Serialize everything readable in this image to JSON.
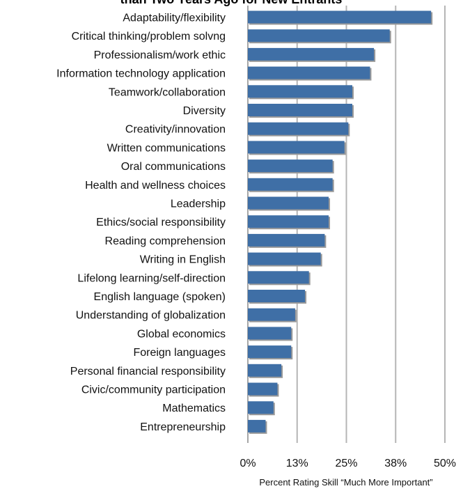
{
  "chart_data": {
    "type": "bar",
    "orientation": "horizontal",
    "title": "than Two Years Ago for New Entrants",
    "xlabel": "Percent Rating Skill “Much More Important”",
    "ylabel": "",
    "xlim": [
      0,
      50
    ],
    "x_ticks": [
      0,
      12.5,
      25,
      37.5,
      50
    ],
    "x_tick_labels": [
      "0%",
      "13%",
      "25%",
      "38%",
      "50%"
    ],
    "grid": "vertical",
    "legend": "none",
    "categories": [
      "Adaptability/flexibility",
      "Critical thinking/problem solvng",
      "Professionalism/work ethic",
      "Information technology application",
      "Teamwork/collaboration",
      "Diversity",
      "Creativity/innovation",
      "Written communications",
      "Oral communications",
      "Health and wellness choices",
      "Leadership",
      "Ethics/social responsibility",
      "Reading comprehension",
      "Writing in English",
      "Lifelong learning/self-direction",
      "English language (spoken)",
      "Understanding of globalization",
      "Global economics",
      "Foreign languages",
      "Personal financial responsibility",
      "Civic/community participation",
      "Mathematics",
      "Entrepreneurship"
    ],
    "values": [
      46.5,
      36,
      32,
      31,
      26.5,
      26.5,
      25.5,
      24.5,
      21.5,
      21.5,
      20.5,
      20.5,
      19.5,
      18.5,
      15.5,
      14.5,
      12,
      11,
      11,
      8.5,
      7.5,
      6.5,
      4.5
    ],
    "colors": {
      "bar": "#3f6fa6",
      "bar_shadow": "#9a9a9a",
      "grid": "#b5b5b5",
      "axis": "#888888"
    }
  }
}
